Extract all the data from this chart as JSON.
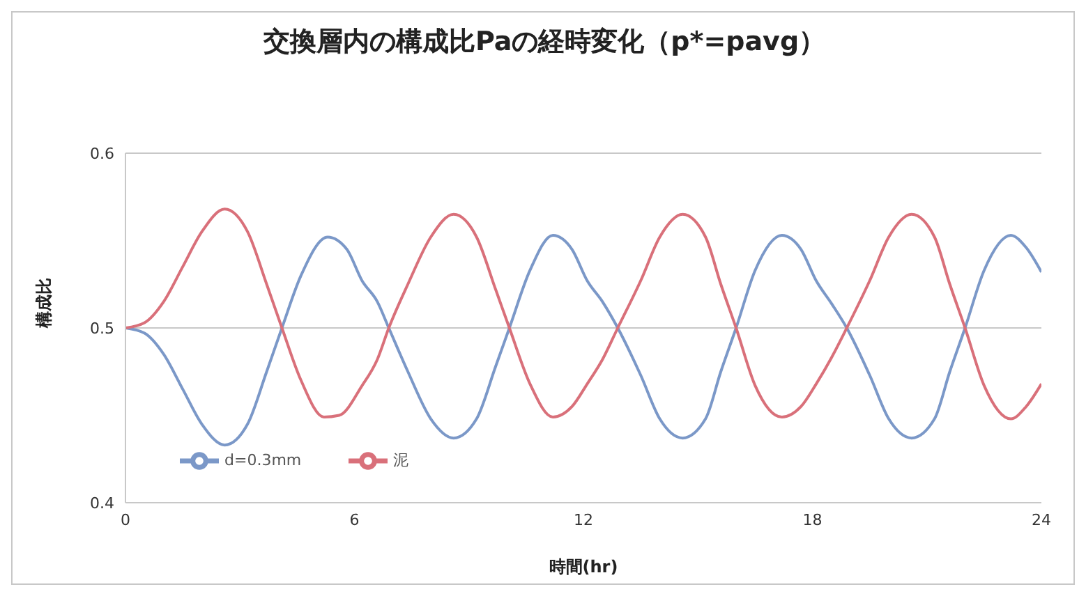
{
  "chart_data": {
    "type": "line",
    "title": "交換層内の構成比Paの経時変化（p*=pavg）",
    "xlabel": "時間(hr)",
    "ylabel": "構成比",
    "xlim": [
      0,
      24
    ],
    "xticks": [
      0,
      6,
      12,
      18,
      24
    ],
    "ylim": [
      0.4,
      0.6
    ],
    "yticks": [
      0.4,
      0.5,
      0.6
    ],
    "grid": "y",
    "legend": "bottom left",
    "marker": "none",
    "line_style": "solid",
    "series": [
      {
        "name": "d=0.3mm",
        "color": "#7b98c8",
        "x": [
          0,
          0.5,
          1,
          1.5,
          2,
          2.6,
          3.2,
          3.7,
          4.1,
          4.6,
          5.3,
          5.8,
          6.2,
          6.6,
          6.9,
          7.4,
          8,
          8.6,
          9.2,
          9.7,
          10.06,
          10.6,
          11.2,
          11.7,
          12.1,
          12.5,
          12.9,
          13.5,
          14,
          14.6,
          15.2,
          15.6,
          16,
          16.5,
          17.2,
          17.7,
          18.1,
          18.5,
          18.9,
          19.5,
          20,
          20.6,
          21.2,
          21.6,
          22,
          22.5,
          23.2,
          23.6,
          24
        ],
        "values": [
          0.5,
          0.497,
          0.485,
          0.465,
          0.445,
          0.433,
          0.445,
          0.475,
          0.5,
          0.53,
          0.552,
          0.545,
          0.527,
          0.515,
          0.5,
          0.475,
          0.448,
          0.437,
          0.448,
          0.478,
          0.5,
          0.533,
          0.553,
          0.545,
          0.527,
          0.515,
          0.5,
          0.473,
          0.448,
          0.437,
          0.448,
          0.475,
          0.5,
          0.533,
          0.553,
          0.545,
          0.527,
          0.514,
          0.5,
          0.473,
          0.448,
          0.437,
          0.448,
          0.475,
          0.5,
          0.533,
          0.553,
          0.546,
          0.532
        ]
      },
      {
        "name": "泥",
        "color": "#d9707a",
        "x": [
          0,
          0.5,
          1,
          1.5,
          2,
          2.6,
          3.2,
          3.7,
          4.1,
          4.6,
          5.2,
          5.6,
          6.2,
          6.6,
          6.9,
          7.4,
          8,
          8.6,
          9.2,
          9.7,
          10.06,
          10.6,
          11.2,
          11.7,
          12.1,
          12.5,
          12.9,
          13.5,
          14,
          14.6,
          15.2,
          15.6,
          16,
          16.5,
          17.2,
          17.7,
          18.1,
          18.5,
          18.9,
          19.5,
          20,
          20.6,
          21.2,
          21.6,
          22,
          22.5,
          23.2,
          23.6,
          24
        ],
        "values": [
          0.5,
          0.503,
          0.515,
          0.535,
          0.555,
          0.568,
          0.555,
          0.525,
          0.5,
          0.47,
          0.449,
          0.45,
          0.467,
          0.482,
          0.5,
          0.525,
          0.552,
          0.565,
          0.552,
          0.522,
          0.5,
          0.468,
          0.449,
          0.455,
          0.468,
          0.482,
          0.5,
          0.527,
          0.552,
          0.565,
          0.552,
          0.525,
          0.5,
          0.467,
          0.449,
          0.455,
          0.468,
          0.483,
          0.5,
          0.527,
          0.552,
          0.565,
          0.552,
          0.525,
          0.5,
          0.467,
          0.448,
          0.455,
          0.468
        ]
      }
    ]
  }
}
